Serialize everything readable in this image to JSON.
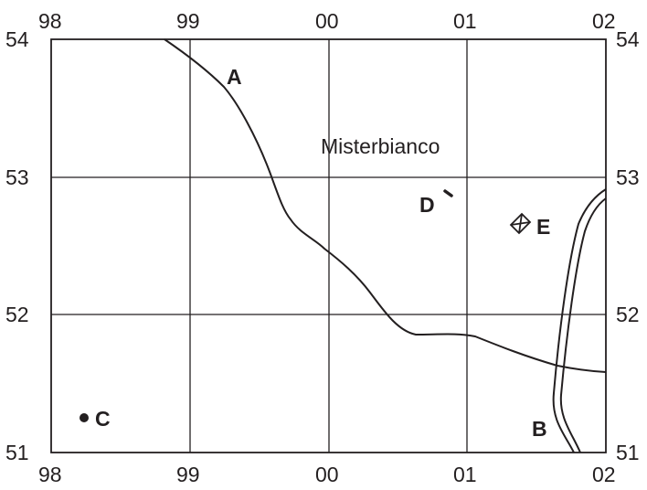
{
  "map": {
    "grid": {
      "eastings": [
        "98",
        "99",
        "00",
        "01",
        "02"
      ],
      "northings": [
        "54",
        "53",
        "52",
        "51"
      ]
    },
    "place_name": "Misterbianco",
    "features": {
      "a": {
        "label": "A"
      },
      "b": {
        "label": "B"
      },
      "c": {
        "label": "C"
      },
      "d": {
        "label": "D"
      },
      "e": {
        "label": "E"
      }
    },
    "colors": {
      "ink": "#231f20",
      "background": "#ffffff"
    }
  }
}
